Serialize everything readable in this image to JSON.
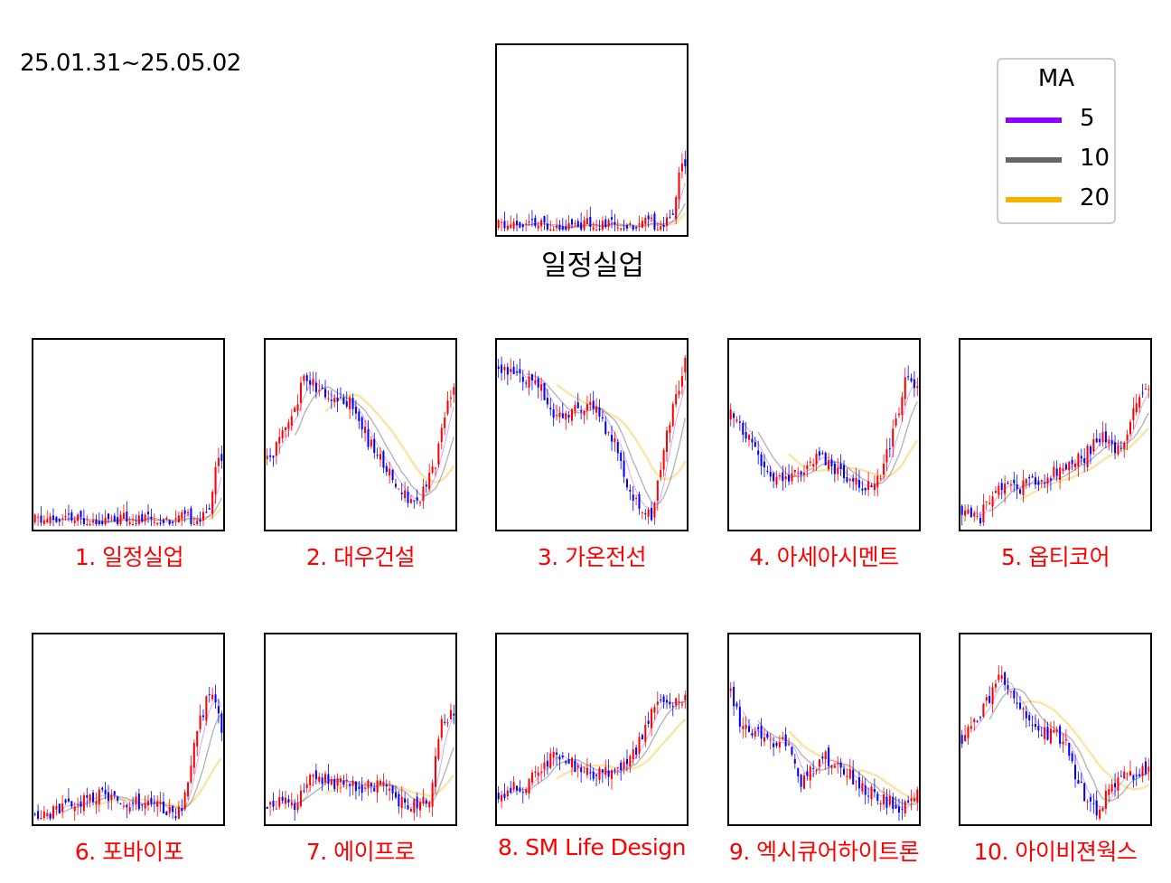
{
  "date_range": "25.01.31~25.05.02",
  "main_title": "일정실업",
  "legend": {
    "title": "MA",
    "items": [
      {
        "label": "5",
        "color": "#8B00FF"
      },
      {
        "label": "10",
        "color": "#666666"
      },
      {
        "label": "20",
        "color": "#F4B400"
      }
    ]
  },
  "colors": {
    "up": "#ff0000",
    "down": "#0000ff",
    "caption": "#ff0000"
  },
  "chart_data": [
    {
      "type": "line",
      "id": "main",
      "title": "일정실업",
      "seed": 11,
      "profile": "ilj"
    },
    {
      "type": "line",
      "id": "p1",
      "title": "1. 일정실업",
      "seed": 11,
      "profile": "ilj"
    },
    {
      "type": "line",
      "id": "p2",
      "title": "2. 대우건설",
      "seed": 23,
      "profile": "daewoo"
    },
    {
      "type": "line",
      "id": "p3",
      "title": "3. 가온전선",
      "seed": 37,
      "profile": "gaon"
    },
    {
      "type": "line",
      "id": "p4",
      "title": "4. 아세아시멘트",
      "seed": 41,
      "profile": "asia"
    },
    {
      "type": "line",
      "id": "p5",
      "title": "5. 옵티코어",
      "seed": 53,
      "profile": "opti"
    },
    {
      "type": "line",
      "id": "p6",
      "title": "6. 포바이포",
      "seed": 67,
      "profile": "four"
    },
    {
      "type": "line",
      "id": "p7",
      "title": "7. 에이프로",
      "seed": 71,
      "profile": "apro"
    },
    {
      "type": "line",
      "id": "p8",
      "title": "8. SM Life Design",
      "seed": 83,
      "profile": "sm"
    },
    {
      "type": "line",
      "id": "p9",
      "title": "9. 엑시큐어하이트론",
      "seed": 97,
      "profile": "exi"
    },
    {
      "type": "line",
      "id": "p10",
      "title": "10. 아이비젼웍스",
      "seed": 101,
      "profile": "ivision"
    }
  ]
}
